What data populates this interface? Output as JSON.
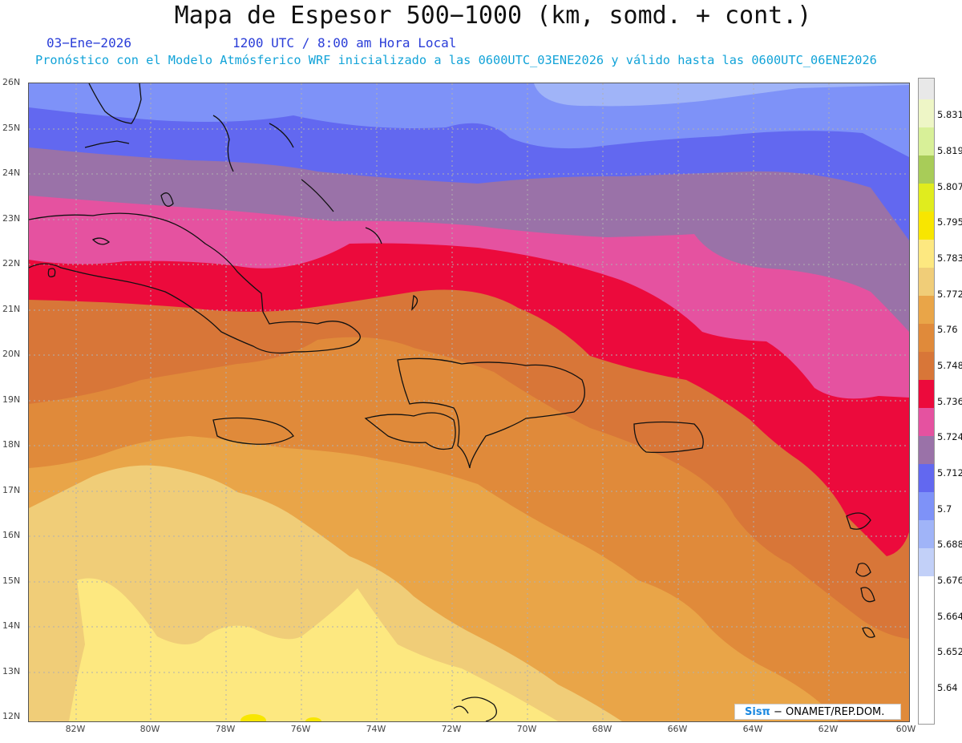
{
  "title": "Mapa de Espesor 500−1000 (km, somd. + cont.)",
  "date": "03−Ene−2026",
  "time": "1200 UTC / 8:00 am Hora Local",
  "run_info": "Pronóstico con el Modelo Atmósferico WRF inicializado a las 0600UTC_03ENE2026 y válido hasta las  0600UTC_06ENE2026",
  "lat_labels": [
    "26N",
    "25N",
    "24N",
    "23N",
    "22N",
    "21N",
    "20N",
    "19N",
    "18N",
    "17N",
    "16N",
    "15N",
    "14N",
    "13N",
    "12N"
  ],
  "lon_labels": [
    "82W",
    "80W",
    "78W",
    "76W",
    "74W",
    "72W",
    "70W",
    "68W",
    "66W",
    "64W",
    "62W",
    "60W"
  ],
  "colorbar": {
    "labels": [
      "5.831",
      "5.819",
      "5.807",
      "5.795",
      "5.783",
      "5.772",
      "5.76",
      "5.748",
      "5.736",
      "5.724",
      "5.712",
      "5.7",
      "5.688",
      "5.676",
      "5.664",
      "5.652",
      "5.64"
    ],
    "colors": [
      "#e8e8e8",
      "#eef6c6",
      "#d8f098",
      "#a8cc58",
      "#e0ec1e",
      "#f8e600",
      "#fde880",
      "#f0cd78",
      "#e9a548",
      "#e08a3a",
      "#d87638",
      "#ec0a3c",
      "#e552a0",
      "#9a72a8",
      "#6268f0",
      "#7e92f8",
      "#a0b4f8",
      "#c2d0f8"
    ]
  },
  "logo": {
    "sis": "Sisπ",
    "text": "− ONAMET/REP.DOM."
  }
}
